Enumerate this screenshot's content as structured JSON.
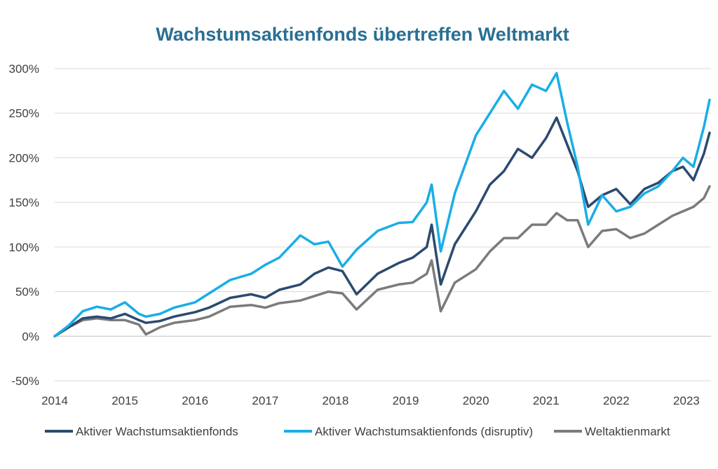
{
  "chart_data": {
    "type": "line",
    "title": "Wachstumsaktienfonds übertreffen Weltmarkt",
    "xlabel": "",
    "ylabel": "",
    "x_ticks": [
      "2014",
      "2015",
      "2016",
      "2017",
      "2018",
      "2019",
      "2020",
      "2021",
      "2022",
      "2023"
    ],
    "y_ticks": [
      "300%",
      "250%",
      "200%",
      "150%",
      "100%",
      "50%",
      "0%",
      "-50%"
    ],
    "ylim": [
      -50,
      300
    ],
    "xlim": [
      2014.0,
      2023.35
    ],
    "grid": "horizontal",
    "legend_position": "bottom",
    "series": [
      {
        "name": "Aktiver Wachstumsaktienfonds",
        "color": "#2b4a6f",
        "x": [
          2014.0,
          2014.2,
          2014.4,
          2014.6,
          2014.8,
          2015.0,
          2015.2,
          2015.3,
          2015.5,
          2015.7,
          2016.0,
          2016.2,
          2016.5,
          2016.8,
          2017.0,
          2017.2,
          2017.5,
          2017.7,
          2017.9,
          2018.1,
          2018.3,
          2018.6,
          2018.9,
          2019.1,
          2019.3,
          2019.37,
          2019.5,
          2019.7,
          2020.0,
          2020.2,
          2020.4,
          2020.6,
          2020.8,
          2021.0,
          2021.15,
          2021.3,
          2021.45,
          2021.6,
          2021.8,
          2022.0,
          2022.2,
          2022.4,
          2022.6,
          2022.8,
          2022.95,
          2023.1,
          2023.25,
          2023.33
        ],
        "values": [
          0,
          10,
          20,
          22,
          20,
          25,
          18,
          15,
          17,
          22,
          27,
          32,
          43,
          47,
          43,
          52,
          58,
          70,
          77,
          73,
          47,
          70,
          82,
          88,
          100,
          125,
          58,
          103,
          140,
          170,
          185,
          210,
          200,
          222,
          245,
          215,
          185,
          145,
          158,
          165,
          148,
          165,
          172,
          185,
          190,
          175,
          205,
          228
        ]
      },
      {
        "name": "Aktiver Wachstumsaktienfonds (disruptiv)",
        "color": "#19aee6",
        "x": [
          2014.0,
          2014.2,
          2014.4,
          2014.6,
          2014.8,
          2015.0,
          2015.2,
          2015.3,
          2015.5,
          2015.7,
          2016.0,
          2016.2,
          2016.5,
          2016.8,
          2017.0,
          2017.2,
          2017.5,
          2017.7,
          2017.9,
          2018.1,
          2018.3,
          2018.6,
          2018.9,
          2019.1,
          2019.3,
          2019.37,
          2019.5,
          2019.7,
          2020.0,
          2020.2,
          2020.4,
          2020.6,
          2020.8,
          2021.0,
          2021.15,
          2021.3,
          2021.45,
          2021.6,
          2021.8,
          2022.0,
          2022.2,
          2022.4,
          2022.6,
          2022.8,
          2022.95,
          2023.1,
          2023.25,
          2023.33
        ],
        "values": [
          0,
          12,
          28,
          33,
          30,
          38,
          25,
          22,
          25,
          32,
          38,
          48,
          63,
          70,
          80,
          88,
          113,
          103,
          106,
          78,
          97,
          118,
          127,
          128,
          150,
          170,
          95,
          160,
          225,
          250,
          275,
          255,
          282,
          275,
          295,
          240,
          190,
          125,
          158,
          140,
          145,
          160,
          168,
          185,
          200,
          190,
          235,
          265
        ]
      },
      {
        "name": "Weltaktienmarkt",
        "color": "#7b7b7b",
        "x": [
          2014.0,
          2014.2,
          2014.4,
          2014.6,
          2014.8,
          2015.0,
          2015.2,
          2015.3,
          2015.5,
          2015.7,
          2016.0,
          2016.2,
          2016.5,
          2016.8,
          2017.0,
          2017.2,
          2017.5,
          2017.7,
          2017.9,
          2018.1,
          2018.3,
          2018.6,
          2018.9,
          2019.1,
          2019.3,
          2019.37,
          2019.5,
          2019.7,
          2020.0,
          2020.2,
          2020.4,
          2020.6,
          2020.8,
          2021.0,
          2021.15,
          2021.3,
          2021.45,
          2021.6,
          2021.8,
          2022.0,
          2022.2,
          2022.4,
          2022.6,
          2022.8,
          2022.95,
          2023.1,
          2023.25,
          2023.33
        ],
        "values": [
          0,
          10,
          18,
          20,
          18,
          18,
          13,
          2,
          10,
          15,
          18,
          22,
          33,
          35,
          32,
          37,
          40,
          45,
          50,
          48,
          30,
          52,
          58,
          60,
          70,
          85,
          28,
          60,
          75,
          95,
          110,
          110,
          125,
          125,
          138,
          130,
          130,
          100,
          118,
          120,
          110,
          115,
          125,
          135,
          140,
          145,
          155,
          168
        ]
      }
    ]
  }
}
